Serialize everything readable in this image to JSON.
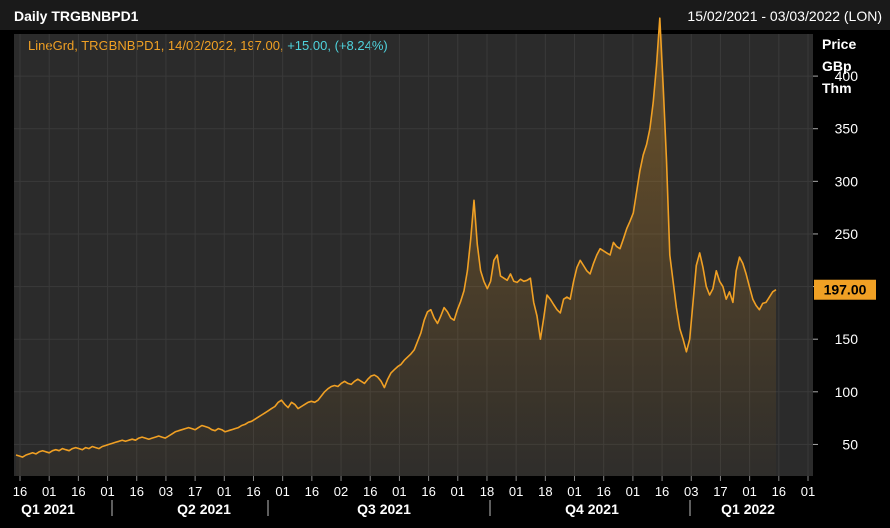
{
  "header": {
    "title": "Daily TRGBNBPD1",
    "date_range": "15/02/2021 - 03/03/2022 (LON)"
  },
  "legend": {
    "series_label": "LineGrd, TRGBNBPD1, 14/02/2022, 197.00,",
    "change_abs": "+15.00,",
    "change_pct": "(+8.24%)"
  },
  "axis": {
    "unit_line1": "Price",
    "unit_line2": "GBp",
    "unit_line3": "Thm",
    "last_value_badge": "197.00"
  },
  "colors": {
    "line": "#f0a024",
    "change": "#4fd3dd",
    "background": "#2b2b2b",
    "badge": "#f0a024"
  },
  "chart_data": {
    "type": "area",
    "title": "Daily TRGBNBPD1",
    "ylabel": "Price GBp Thm",
    "ylim": [
      20,
      440
    ],
    "yticks": [
      50,
      100,
      150,
      200,
      250,
      300,
      350,
      400
    ],
    "xticks_day_labels": [
      "16",
      "01",
      "16",
      "01",
      "16",
      "03",
      "17",
      "01",
      "16",
      "01",
      "16",
      "02",
      "16",
      "01",
      "16",
      "01",
      "18",
      "01",
      "18",
      "01",
      "16",
      "01",
      "16",
      "03",
      "17",
      "01",
      "16",
      "01"
    ],
    "quarter_labels": [
      "Q1 2021",
      "Q2 2021",
      "Q3 2021",
      "Q4 2021",
      "Q1 2022"
    ],
    "last_value": 197.0,
    "series": [
      {
        "values": [
          40,
          39,
          38,
          40,
          41,
          42,
          41,
          43,
          44,
          43,
          42,
          44,
          45,
          44,
          46,
          45,
          44,
          46,
          47,
          46,
          45,
          47,
          46,
          48,
          47,
          46,
          48,
          49,
          50,
          51,
          52,
          53,
          54,
          53,
          54,
          55,
          54,
          56,
          57,
          56,
          55,
          56,
          57,
          58,
          57,
          56,
          58,
          60,
          62,
          63,
          64,
          65,
          66,
          65,
          64,
          66,
          68,
          67,
          66,
          64,
          63,
          65,
          64,
          62,
          63,
          64,
          65,
          66,
          68,
          69,
          71,
          72,
          74,
          76,
          78,
          80,
          82,
          84,
          86,
          90,
          92,
          88,
          85,
          90,
          88,
          84,
          86,
          88,
          90,
          91,
          90,
          92,
          96,
          100,
          103,
          105,
          106,
          105,
          108,
          110,
          108,
          107,
          110,
          112,
          110,
          108,
          112,
          115,
          116,
          114,
          110,
          104,
          112,
          118,
          121,
          124,
          126,
          130,
          133,
          136,
          140,
          148,
          156,
          168,
          176,
          178,
          170,
          165,
          172,
          180,
          176,
          170,
          168,
          178,
          186,
          196,
          215,
          245,
          282,
          240,
          215,
          205,
          198,
          205,
          225,
          230,
          210,
          208,
          206,
          212,
          205,
          204,
          207,
          205,
          206,
          208,
          185,
          172,
          150,
          170,
          192,
          188,
          183,
          178,
          175,
          188,
          190,
          188,
          205,
          218,
          225,
          220,
          215,
          212,
          222,
          230,
          236,
          234,
          232,
          230,
          242,
          238,
          236,
          245,
          255,
          262,
          270,
          290,
          310,
          325,
          335,
          350,
          375,
          410,
          455,
          390,
          320,
          230,
          205,
          180,
          160,
          150,
          138,
          150,
          185,
          220,
          232,
          218,
          200,
          192,
          198,
          215,
          205,
          200,
          188,
          195,
          185,
          215,
          228,
          222,
          212,
          200,
          188,
          182,
          178,
          184,
          185,
          190,
          195,
          197
        ]
      }
    ]
  }
}
